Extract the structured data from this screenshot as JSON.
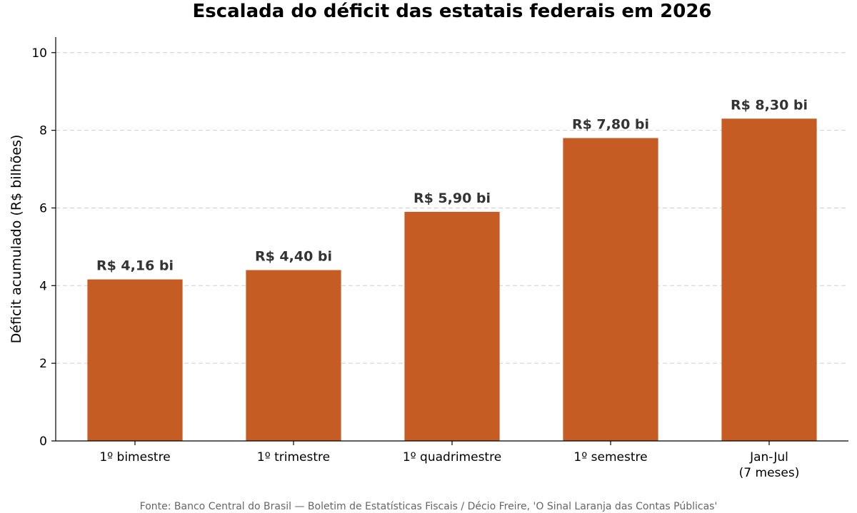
{
  "chart_data": {
    "type": "bar",
    "title": "Escalada do déficit das estatais federais em 2026",
    "ylabel": "Déficit acumulado (R$ bilhões)",
    "xlabel": "",
    "categories": [
      [
        "1º bimestre"
      ],
      [
        "1º trimestre"
      ],
      [
        "1º quadrimestre"
      ],
      [
        "1º semestre"
      ],
      [
        "Jan-Jul",
        "(7 meses)"
      ]
    ],
    "values": [
      4.16,
      4.4,
      5.9,
      7.8,
      8.3
    ],
    "data_labels": [
      "R$ 4,16 bi",
      "R$ 4,40 bi",
      "R$ 5,90 bi",
      "R$ 7,80 bi",
      "R$ 8,30 bi"
    ],
    "ylim": [
      0,
      10.4
    ],
    "yticks": [
      0,
      2,
      4,
      6,
      8,
      10
    ],
    "grid": "y-dashed",
    "bar_color": "#c45c23",
    "legend": "none"
  },
  "source_note": "Fonte: Banco Central do Brasil — Boletim de Estatísticas Fiscais / Décio Freire, 'O Sinal Laranja das Contas Públicas'"
}
